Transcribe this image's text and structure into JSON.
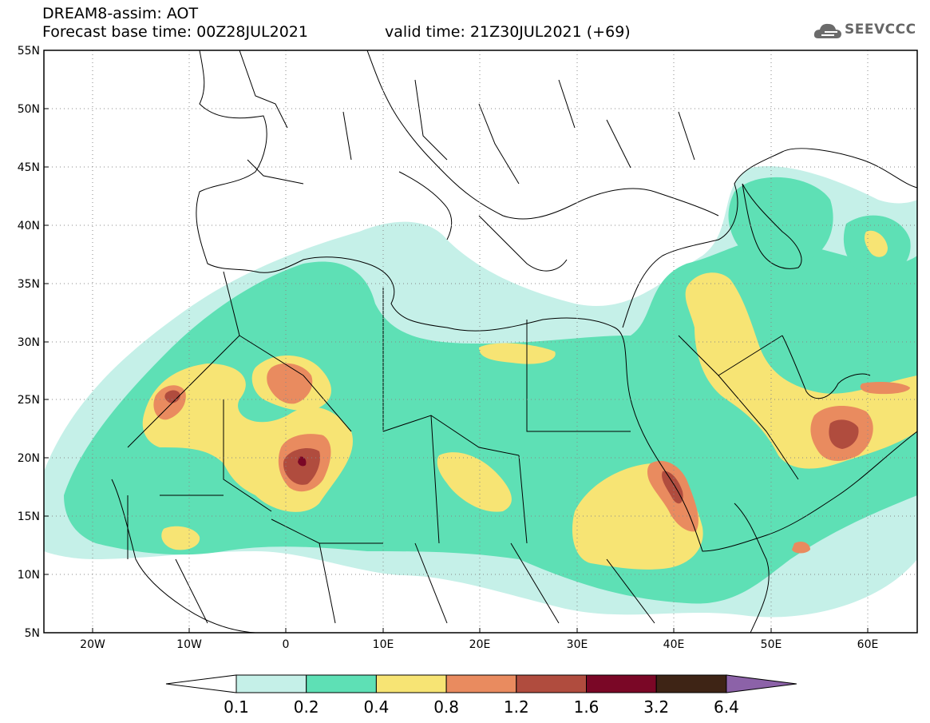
{
  "title": {
    "line1": "DREAM8-assim: AOT",
    "line2": "Forecast base time: 00Z28JUL2021",
    "line3": "valid time: 21Z30JUL2021 (+69)"
  },
  "logo": {
    "text": "SEEVCCC",
    "icon": "cloud-icon"
  },
  "axes": {
    "lat_labels": [
      "55N",
      "50N",
      "45N",
      "40N",
      "35N",
      "30N",
      "25N",
      "20N",
      "15N",
      "10N",
      "5N"
    ],
    "lat_values": [
      55,
      50,
      45,
      40,
      35,
      30,
      25,
      20,
      15,
      10,
      5
    ],
    "lon_labels": [
      "20W",
      "10W",
      "0",
      "10E",
      "20E",
      "30E",
      "40E",
      "50E",
      "60E"
    ],
    "lon_values": [
      -20,
      -10,
      0,
      10,
      20,
      30,
      40,
      50,
      60
    ],
    "lon_range": [
      -25,
      65
    ],
    "lat_range": [
      5,
      55
    ],
    "grid": "dotted"
  },
  "colorbar": {
    "labels": [
      "0.1",
      "0.2",
      "0.4",
      "0.8",
      "1.2",
      "1.6",
      "3.2",
      "6.4"
    ],
    "colors": [
      "#ffffff",
      "#c5f0e8",
      "#5ee0b5",
      "#f7e474",
      "#e98b5f",
      "#b04c3e",
      "#7a0726",
      "#3e2415",
      "#8c62a8"
    ]
  }
}
